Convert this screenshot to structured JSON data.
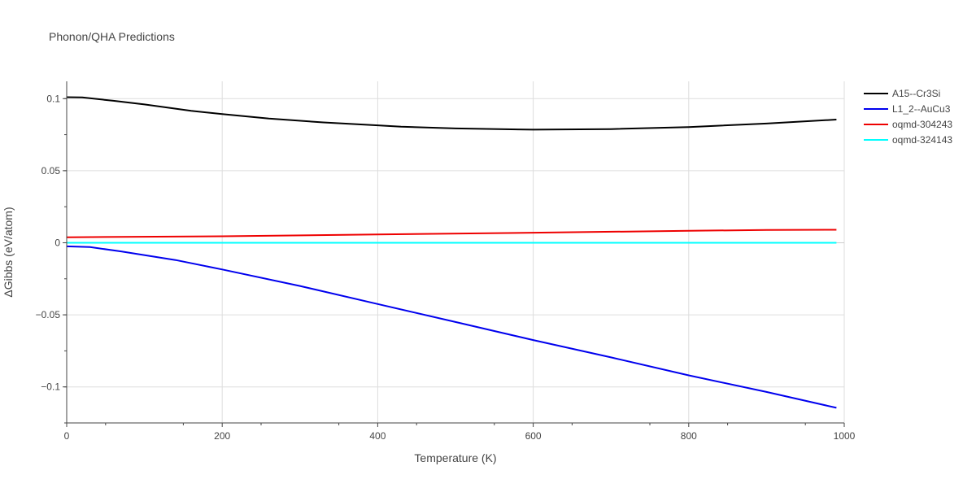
{
  "chart_data": {
    "type": "line",
    "title": "Phonon/QHA Predictions",
    "xlabel": "Temperature (K)",
    "ylabel": "ΔGibbs (eV/atom)",
    "xlim": [
      0,
      1000
    ],
    "ylim": [
      -0.125,
      0.112
    ],
    "xticks": [
      0,
      200,
      400,
      600,
      800,
      1000
    ],
    "xtick_labels": [
      "0",
      "200",
      "400",
      "600",
      "800",
      "1000"
    ],
    "yticks": [
      -0.1,
      -0.05,
      0,
      0.05,
      0.1
    ],
    "ytick_labels": [
      "−0.1",
      "−0.05",
      "0",
      "0.05",
      "0.1"
    ],
    "grid": true,
    "legend_position": "top-right",
    "series": [
      {
        "name": "A15--Cr3Si",
        "color": "#000000",
        "x": [
          0,
          20,
          60,
          100,
          160,
          200,
          260,
          330,
          400,
          430,
          500,
          600,
          700,
          800,
          900,
          990
        ],
        "y": [
          0.101,
          0.1008,
          0.0985,
          0.096,
          0.0915,
          0.0893,
          0.0862,
          0.0835,
          0.0815,
          0.0805,
          0.0793,
          0.0785,
          0.0789,
          0.0803,
          0.0827,
          0.0855
        ]
      },
      {
        "name": "L1_2--AuCu3",
        "color": "#0000ee",
        "x": [
          0,
          30,
          70,
          140,
          200,
          300,
          400,
          500,
          600,
          700,
          800,
          900,
          990
        ],
        "y": [
          -0.0025,
          -0.003,
          -0.006,
          -0.012,
          -0.0185,
          -0.03,
          -0.0425,
          -0.055,
          -0.0675,
          -0.0795,
          -0.092,
          -0.1035,
          -0.1145
        ]
      },
      {
        "name": "oqmd-304243",
        "color": "#ee0000",
        "x": [
          0,
          200,
          400,
          600,
          800,
          900,
          990
        ],
        "y": [
          0.0038,
          0.0045,
          0.0058,
          0.007,
          0.0083,
          0.0089,
          0.009
        ]
      },
      {
        "name": "oqmd-324143",
        "color": "#00ffff",
        "x": [
          0,
          990
        ],
        "y": [
          0.0,
          0.0
        ]
      }
    ]
  }
}
